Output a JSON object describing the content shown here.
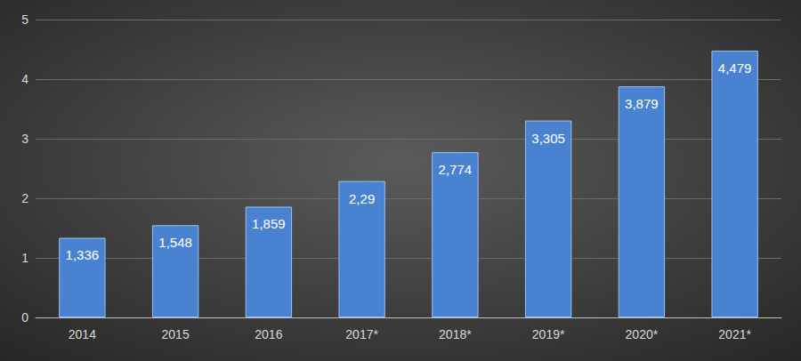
{
  "chart_data": {
    "type": "bar",
    "categories": [
      "2014",
      "2015",
      "2016",
      "2017*",
      "2018*",
      "2019*",
      "2020*",
      "2021*"
    ],
    "values": [
      1.336,
      1.548,
      1.859,
      2.29,
      2.774,
      3.305,
      3.879,
      4.479
    ],
    "value_labels": [
      "1,336",
      "1,548",
      "1,859",
      "2,29",
      "2,774",
      "3,305",
      "3,879",
      "4,479"
    ],
    "color": "#4a82d2",
    "ylim": [
      0,
      5
    ],
    "yticks": [
      0,
      1,
      2,
      3,
      4,
      5
    ],
    "grid": true,
    "data_labels": true
  }
}
